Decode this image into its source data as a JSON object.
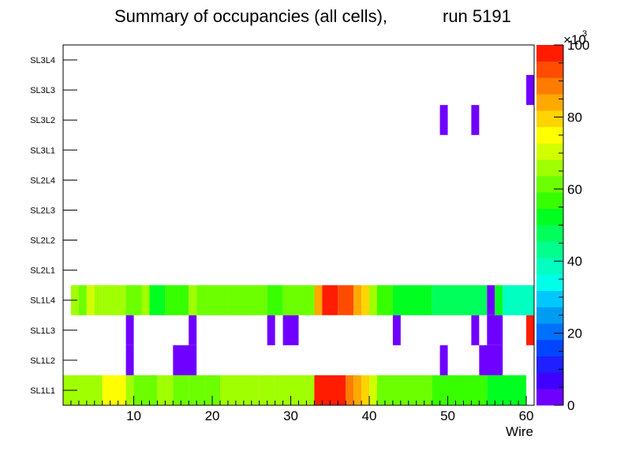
{
  "chart_data": {
    "type": "heatmap",
    "title": "Summary of occupancies (all cells),",
    "run_label": "run 5191",
    "xlabel": "Wire",
    "xlim": [
      1,
      61
    ],
    "x_ticks": [
      10,
      20,
      30,
      40,
      50,
      60
    ],
    "y_categories": [
      "SL1L1",
      "SL1L2",
      "SL1L3",
      "SL1L4",
      "SL2L1",
      "SL2L2",
      "SL2L3",
      "SL2L4",
      "SL3L1",
      "SL3L2",
      "SL3L3",
      "SL3L4"
    ],
    "z_range": [
      0,
      100000
    ],
    "z_multiplier_label": "×10",
    "z_multiplier_exponent": "3",
    "z_ticks": [
      0,
      20,
      40,
      60,
      80,
      100
    ],
    "palette": [
      "#6f00ff",
      "#3f00ff",
      "#1f1fff",
      "#0045ff",
      "#0070ff",
      "#009cf2",
      "#00c8ff",
      "#00ffe8",
      "#00ffc0",
      "#00ff8c",
      "#00ff5a",
      "#00ff20",
      "#38ff00",
      "#6cff00",
      "#a0ff00",
      "#d2ff00",
      "#ffff00",
      "#ffd400",
      "#ffa800",
      "#ff7c00",
      "#ff4c00",
      "#ff1c00"
    ],
    "rows": [
      {
        "layer": "SL1L1",
        "segments": [
          [
            1,
            3,
            68
          ],
          [
            3,
            6,
            64
          ],
          [
            6,
            9,
            74
          ],
          [
            9,
            10,
            68
          ],
          [
            10,
            13,
            60
          ],
          [
            13,
            15,
            64
          ],
          [
            15,
            17,
            62
          ],
          [
            17,
            19,
            60
          ],
          [
            19,
            21,
            62
          ],
          [
            21,
            26,
            68
          ],
          [
            26,
            28,
            64
          ],
          [
            28,
            32,
            68
          ],
          [
            32,
            33,
            64
          ],
          [
            33,
            37,
            96
          ],
          [
            37,
            38,
            88
          ],
          [
            38,
            39,
            82
          ],
          [
            39,
            40,
            78
          ],
          [
            40,
            41,
            70
          ],
          [
            41,
            48,
            60
          ],
          [
            48,
            55,
            58
          ],
          [
            55,
            60,
            50
          ]
        ]
      },
      {
        "layer": "SL1L2",
        "segments": [
          [
            9,
            10,
            4
          ],
          [
            15,
            18,
            4
          ],
          [
            49,
            50,
            4
          ],
          [
            54,
            57,
            4
          ]
        ]
      },
      {
        "layer": "SL1L3",
        "segments": [
          [
            9,
            10,
            4
          ],
          [
            17,
            18,
            4
          ],
          [
            27,
            28,
            4
          ],
          [
            29,
            31,
            4
          ],
          [
            43,
            44,
            4
          ],
          [
            53,
            54,
            4
          ],
          [
            55,
            57,
            4
          ],
          [
            60,
            61,
            96
          ]
        ]
      },
      {
        "layer": "SL1L4",
        "segments": [
          [
            2,
            3,
            66
          ],
          [
            3,
            4,
            60
          ],
          [
            4,
            5,
            70
          ],
          [
            5,
            6,
            64
          ],
          [
            6,
            9,
            68
          ],
          [
            9,
            11,
            62
          ],
          [
            11,
            12,
            64
          ],
          [
            12,
            14,
            54
          ],
          [
            14,
            17,
            58
          ],
          [
            17,
            18,
            66
          ],
          [
            18,
            22,
            60
          ],
          [
            22,
            27,
            62
          ],
          [
            27,
            29,
            58
          ],
          [
            29,
            33,
            62
          ],
          [
            33,
            34,
            84
          ],
          [
            34,
            36,
            96
          ],
          [
            36,
            38,
            92
          ],
          [
            38,
            39,
            84
          ],
          [
            39,
            40,
            78
          ],
          [
            40,
            41,
            66
          ],
          [
            41,
            43,
            58
          ],
          [
            43,
            48,
            52
          ],
          [
            48,
            55,
            46
          ],
          [
            55,
            56,
            4
          ],
          [
            56,
            57,
            50
          ],
          [
            57,
            61,
            40
          ]
        ]
      },
      {
        "layer": "SL2L1",
        "segments": []
      },
      {
        "layer": "SL2L2",
        "segments": []
      },
      {
        "layer": "SL2L3",
        "segments": []
      },
      {
        "layer": "SL2L4",
        "segments": []
      },
      {
        "layer": "SL3L1",
        "segments": []
      },
      {
        "layer": "SL3L2",
        "segments": [
          [
            49,
            50,
            4
          ],
          [
            53,
            54,
            4
          ]
        ]
      },
      {
        "layer": "SL3L3",
        "segments": [
          [
            60,
            61,
            4
          ]
        ]
      },
      {
        "layer": "SL3L4",
        "segments": []
      }
    ]
  }
}
